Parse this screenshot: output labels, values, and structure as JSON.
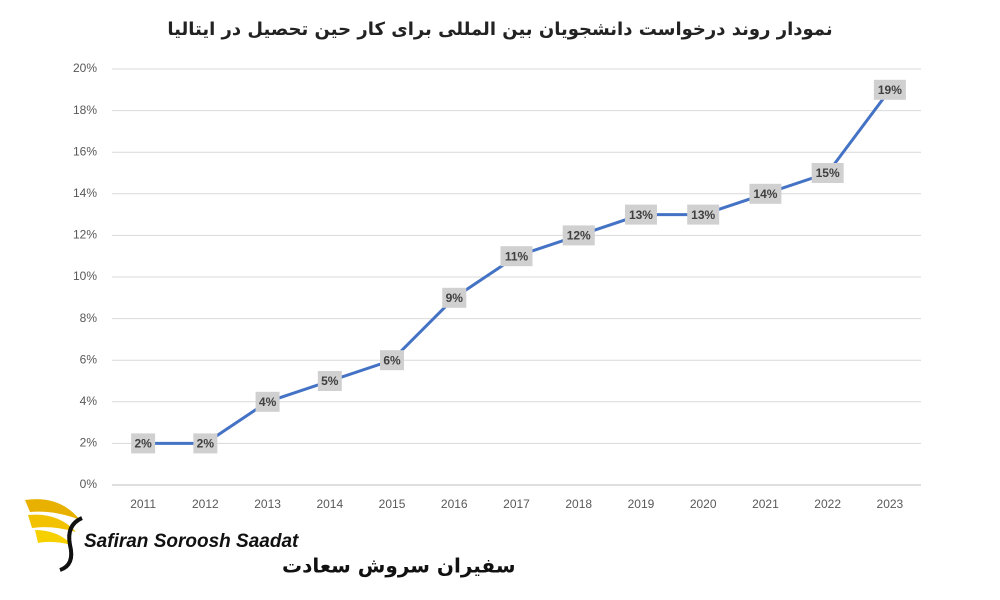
{
  "chart_data": {
    "type": "line",
    "title": "نمودار روند درخواست دانشجویان بین المللی برای کار حین تحصیل در ایتالیا",
    "categories": [
      "2011",
      "2012",
      "2013",
      "2014",
      "2015",
      "2016",
      "2017",
      "2018",
      "2019",
      "2020",
      "2021",
      "2022",
      "2023"
    ],
    "values": [
      2,
      2,
      4,
      5,
      6,
      9,
      11,
      12,
      13,
      13,
      14,
      15,
      19
    ],
    "value_labels": [
      "2%",
      "2%",
      "4%",
      "5%",
      "6%",
      "9%",
      "11%",
      "12%",
      "13%",
      "13%",
      "14%",
      "15%",
      "19%"
    ],
    "color": "#4472c4",
    "ylim": [
      0,
      20
    ],
    "yticks": [
      {
        "value": 0,
        "label": "0%"
      },
      {
        "value": 2,
        "label": "2%"
      },
      {
        "value": 4,
        "label": "4%"
      },
      {
        "value": 6,
        "label": "6%"
      },
      {
        "value": 8,
        "label": "8%"
      },
      {
        "value": 10,
        "label": "10%"
      },
      {
        "value": 12,
        "label": "12%"
      },
      {
        "value": 14,
        "label": "14%"
      },
      {
        "value": 16,
        "label": "16%"
      },
      {
        "value": 18,
        "label": "18%"
      },
      {
        "value": 20,
        "label": "20%"
      }
    ],
    "grid": true
  },
  "logo": {
    "name_en": "Safiran Soroosh Saadat",
    "name_fa": "سفیران سروش سعادت"
  }
}
